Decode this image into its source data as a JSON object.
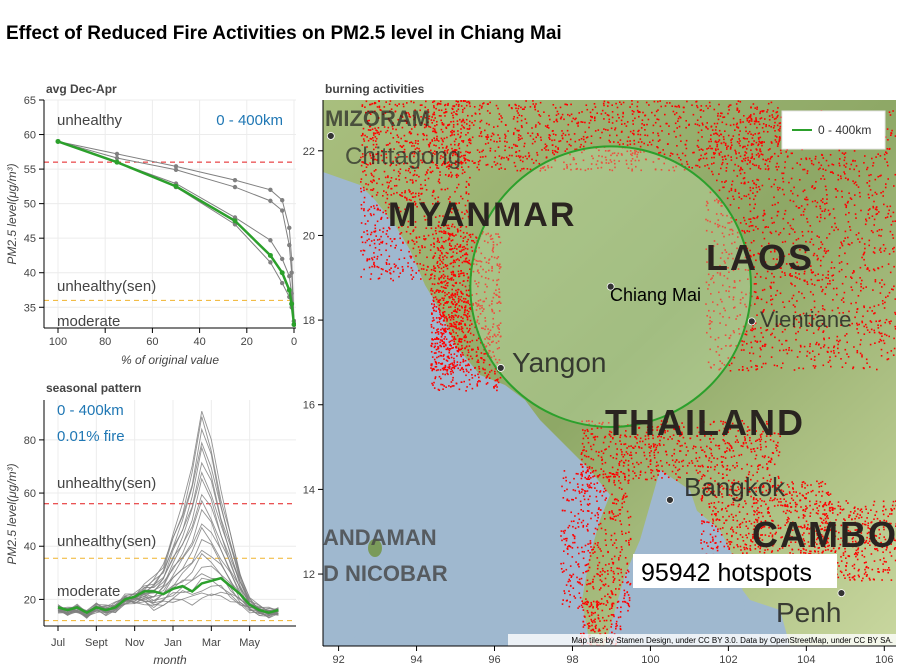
{
  "title": "Effect of Reduced Fire Activities on PM2.5 level in Chiang Mai",
  "colors": {
    "series": "#2ca02c",
    "gray_lines": "#808080",
    "unhealthy_line": "#e41a1c",
    "sensitive_line": "#f0b32c",
    "moderate_line": "#f0b32c",
    "annotation_blue": "#1f77b4",
    "hotspots": "#ff0000"
  },
  "chart_data": [
    {
      "type": "line",
      "title": "avg Dec-Apr",
      "xlabel": "% of original value",
      "ylabel": "PM2.5 level(μg/m³)",
      "xlim": [
        100,
        0
      ],
      "ylim": [
        32,
        65
      ],
      "xticks": [
        "100",
        "80",
        "60",
        "40",
        "20",
        "0"
      ],
      "yticks": [
        "35",
        "40",
        "45",
        "50",
        "55",
        "60",
        "65"
      ],
      "annotations": {
        "top_left": "unhealthy",
        "top_right": "0 - 400km",
        "mid": "unhealthy(sen)",
        "bottom": "moderate"
      },
      "thresholds": {
        "unhealthy": 56,
        "sensitive": 36
      },
      "series": [
        {
          "name": "0 - 400km",
          "x": [
            100,
            75,
            50,
            25,
            10,
            5,
            2,
            1,
            0
          ],
          "y": [
            59,
            56,
            52.5,
            47.5,
            42.5,
            40,
            37.5,
            35.5,
            32.5
          ]
        }
      ],
      "gray_series": [
        {
          "x": [
            100,
            75,
            50,
            25,
            10,
            5,
            2,
            1,
            0
          ],
          "y": [
            59,
            57.2,
            55.4,
            53.4,
            52,
            50.5,
            46.5,
            42,
            33
          ]
        },
        {
          "x": [
            100,
            75,
            50,
            25,
            10,
            5,
            2,
            1,
            0
          ],
          "y": [
            59,
            56.6,
            54.9,
            52.4,
            50.4,
            49,
            44,
            40,
            33
          ]
        },
        {
          "x": [
            100,
            75,
            50,
            25,
            10,
            5,
            2,
            1,
            0
          ],
          "y": [
            59,
            56,
            52.9,
            48,
            44.7,
            42,
            39.5,
            37,
            33
          ]
        },
        {
          "x": [
            100,
            75,
            50,
            25,
            10,
            5,
            2,
            1,
            0
          ],
          "y": [
            59,
            56,
            52.4,
            47,
            41.5,
            38.5,
            36.5,
            35,
            32.5
          ]
        }
      ]
    },
    {
      "type": "line",
      "title": "seasonal pattern",
      "xlabel": "month",
      "ylabel": "PM2.5 level(μg/m³)",
      "ylim": [
        10,
        95
      ],
      "xtick_labels": [
        "Jul",
        "Sept",
        "Nov",
        "Jan",
        "Mar",
        "May"
      ],
      "yticks": [
        "20",
        "40",
        "60",
        "80"
      ],
      "annotations": {
        "region": "0 - 400km",
        "fire": "0.01% fire",
        "unhealthy": "unhealthy(sen)",
        "sensitive": "unhealthy(sen)",
        "moderate": "moderate"
      },
      "thresholds": {
        "unhealthy": 56,
        "sensitive": 35.5,
        "moderate": 12
      },
      "series": [
        {
          "name": "0.01% fire",
          "x": [
            0,
            0.5,
            1,
            1.5,
            2,
            2.5,
            3,
            3.5,
            4,
            4.5,
            5,
            5.5,
            6,
            6.5,
            7,
            7.5,
            8,
            8.5,
            9,
            9.5,
            10,
            10.5,
            11,
            11.5
          ],
          "y": [
            17,
            16,
            17,
            15,
            17,
            16,
            17,
            20,
            21,
            23,
            23,
            22,
            24,
            25,
            23,
            26,
            27,
            28,
            25,
            22,
            18,
            16,
            15,
            16
          ]
        }
      ],
      "gray_envelope": {
        "x": [
          0,
          0.5,
          1,
          1.5,
          2,
          2.5,
          3,
          3.5,
          4,
          4.5,
          5,
          5.5,
          6,
          6.5,
          7,
          7.5,
          8,
          8.5,
          9,
          9.5,
          10,
          10.5,
          11,
          11.5
        ],
        "top": [
          17,
          16,
          17,
          15,
          18,
          17,
          18,
          21,
          22,
          25,
          28,
          33,
          45,
          55,
          70,
          92,
          80,
          60,
          45,
          30,
          20,
          17,
          16,
          16
        ],
        "bottom": [
          16,
          15,
          16,
          14,
          16,
          15,
          16,
          19,
          19,
          19,
          17,
          18,
          19,
          20,
          19,
          20,
          21,
          22,
          20,
          18,
          16,
          15,
          14,
          15
        ]
      }
    },
    {
      "type": "scatter",
      "title": "burning activities",
      "xlim": [
        91.6,
        106.3
      ],
      "ylim": [
        10.3,
        23.2
      ],
      "xticks": [
        "92",
        "94",
        "96",
        "98",
        "100",
        "102",
        "104",
        "106"
      ],
      "yticks": [
        "12",
        "14",
        "16",
        "18",
        "20",
        "22"
      ],
      "legend": "0 - 400km",
      "legend_position": "top-right",
      "hotspot_label": "95942 hotspots",
      "attribution": "Map tiles by Stamen Design, under CC BY 3.0. Data by OpenStreetMap, under CC BY SA.",
      "map_labels": {
        "mizoram": "MIZORAM",
        "chittagong": "Chittagong",
        "myanmar": "MYANMAR",
        "laos": "LAOS",
        "vientiane": "Vientiane",
        "chiang_mai": "Chiang Mai",
        "yangon": "Yangon",
        "thailand": "THAILAND",
        "bangkok": "Bangkok",
        "cambodia": "CAMBO",
        "andaman": "ANDAMAN",
        "nicobar": "D NICOBAR",
        "penh": "Penh"
      },
      "cities": [
        {
          "name": "Chiang Mai",
          "lon": 98.98,
          "lat": 18.79
        },
        {
          "name": "Yangon",
          "lon": 96.16,
          "lat": 16.87
        },
        {
          "name": "Bangkok",
          "lon": 100.5,
          "lat": 13.75
        },
        {
          "name": "Vientiane",
          "lon": 102.6,
          "lat": 17.97
        },
        {
          "name": "Chittagong",
          "lon": 91.8,
          "lat": 22.35
        },
        {
          "name": "Phnom Penh",
          "lon": 104.9,
          "lat": 11.55
        }
      ]
    }
  ]
}
